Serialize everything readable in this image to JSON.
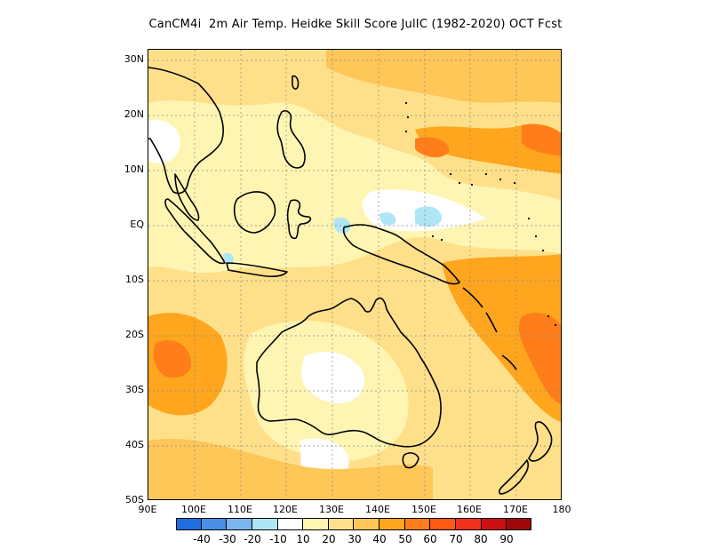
{
  "title": "CanCM4i  2m Air Temp. Heidke Skill Score JulIC (1982-2020) OCT Fcst",
  "map": {
    "lon_range": [
      "90E",
      "180E"
    ],
    "lat_range": [
      "50S",
      "32N"
    ],
    "y_labels": [
      "30N",
      "20N",
      "10N",
      "EQ",
      "10S",
      "20S",
      "30S",
      "40S",
      "50S"
    ],
    "x_labels": [
      "90E",
      "100E",
      "110E",
      "120E",
      "130E",
      "140E",
      "150E",
      "160E",
      "170E",
      "180"
    ],
    "gridlines": "dashed"
  },
  "colorbar": {
    "labels": [
      "-40",
      "-30",
      "-20",
      "-10",
      "10",
      "20",
      "30",
      "40",
      "50",
      "60",
      "70",
      "80",
      "90"
    ],
    "colors": [
      "#1e6ee0",
      "#4a8fe6",
      "#7cb6f0",
      "#aee6f5",
      "#ffffff",
      "#fff5b3",
      "#ffe08a",
      "#ffc658",
      "#ffa61e",
      "#ff7e1a",
      "#ff5a14",
      "#f0321a",
      "#cc0f0f",
      "#a00808"
    ]
  }
}
